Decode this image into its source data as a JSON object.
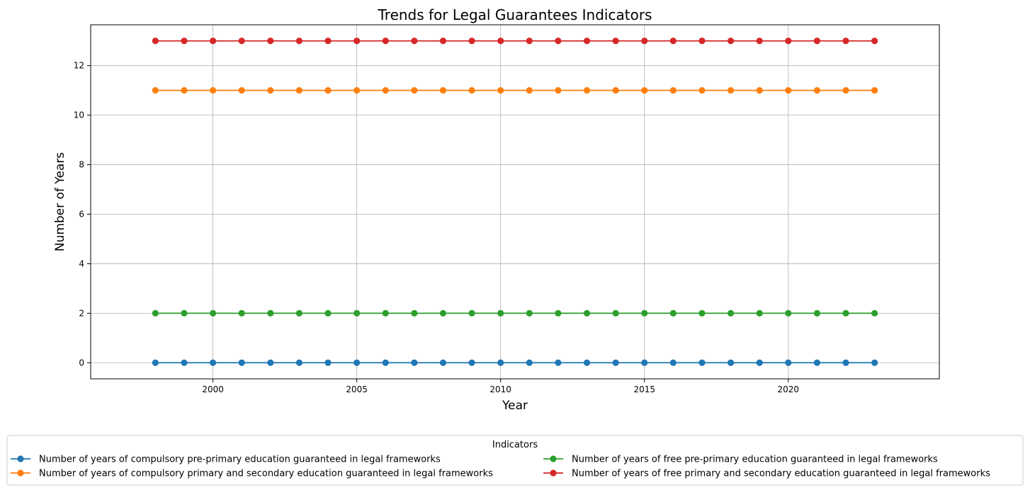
{
  "chart_data": {
    "type": "line",
    "title": "Trends for Legal Guarantees Indicators",
    "xlabel": "Year",
    "ylabel": "Number of Years",
    "x": [
      1998,
      1999,
      2000,
      2001,
      2002,
      2003,
      2004,
      2005,
      2006,
      2007,
      2008,
      2009,
      2010,
      2011,
      2012,
      2013,
      2014,
      2015,
      2016,
      2017,
      2018,
      2019,
      2020,
      2021,
      2022,
      2023
    ],
    "xlim": [
      1995.75,
      2025.25
    ],
    "ylim": [
      -0.65,
      13.65
    ],
    "xticks": [
      2000,
      2005,
      2010,
      2015,
      2020
    ],
    "yticks": [
      0,
      2,
      4,
      6,
      8,
      10,
      12
    ],
    "grid": true,
    "legend": {
      "title": "Indicators",
      "placement": "bottom-center"
    },
    "series": [
      {
        "name": "Number of years of compulsory pre-primary education guaranteed in legal frameworks",
        "color": "#1f77b4",
        "values": [
          0,
          0,
          0,
          0,
          0,
          0,
          0,
          0,
          0,
          0,
          0,
          0,
          0,
          0,
          0,
          0,
          0,
          0,
          0,
          0,
          0,
          0,
          0,
          0,
          0,
          0
        ]
      },
      {
        "name": "Number of years of compulsory primary and secondary education guaranteed in legal frameworks",
        "color": "#ff7f0e",
        "values": [
          11,
          11,
          11,
          11,
          11,
          11,
          11,
          11,
          11,
          11,
          11,
          11,
          11,
          11,
          11,
          11,
          11,
          11,
          11,
          11,
          11,
          11,
          11,
          11,
          11,
          11
        ]
      },
      {
        "name": "Number of years of free pre-primary education guaranteed in legal frameworks",
        "color": "#2ca02c",
        "values": [
          2,
          2,
          2,
          2,
          2,
          2,
          2,
          2,
          2,
          2,
          2,
          2,
          2,
          2,
          2,
          2,
          2,
          2,
          2,
          2,
          2,
          2,
          2,
          2,
          2,
          2
        ]
      },
      {
        "name": "Number of years of free primary and secondary education guaranteed in legal frameworks",
        "color": "#d62728",
        "values": [
          13,
          13,
          13,
          13,
          13,
          13,
          13,
          13,
          13,
          13,
          13,
          13,
          13,
          13,
          13,
          13,
          13,
          13,
          13,
          13,
          13,
          13,
          13,
          13,
          13,
          13
        ]
      }
    ]
  }
}
